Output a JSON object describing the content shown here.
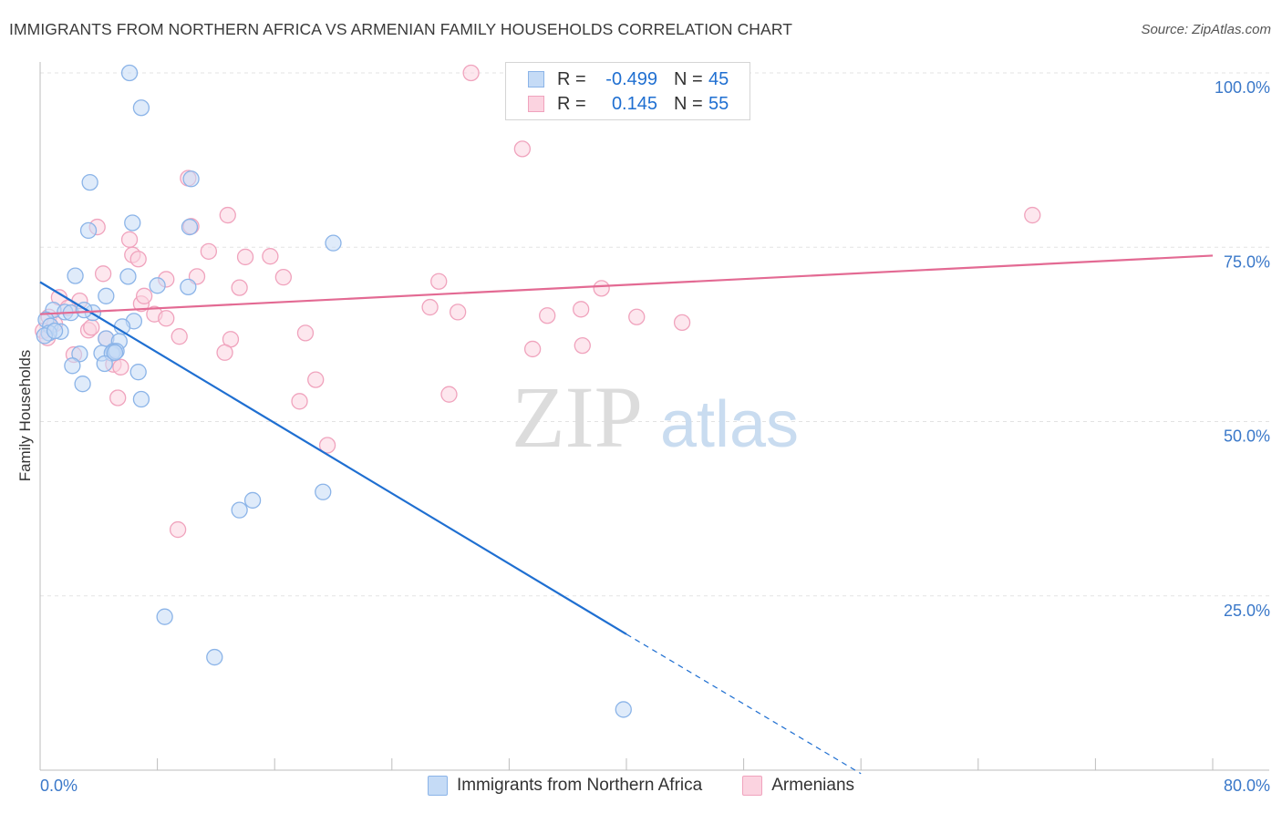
{
  "title": "IMMIGRANTS FROM NORTHERN AFRICA VS ARMENIAN FAMILY HOUSEHOLDS CORRELATION CHART",
  "source": "Source: ZipAtlas.com",
  "watermark": {
    "zip": "ZIP",
    "atlas": "atlas"
  },
  "legend": {
    "r_label": "R =",
    "n_label": "N =",
    "rows": [
      {
        "r": "-0.499",
        "n": "45",
        "color": "#8bb4e8",
        "fill": "#c5dbf6"
      },
      {
        "r": "0.145",
        "n": "55",
        "color": "#f0a3bd",
        "fill": "#fbd3e0"
      }
    ]
  },
  "chart_data": {
    "type": "scatter",
    "title": "IMMIGRANTS FROM NORTHERN AFRICA VS ARMENIAN FAMILY HOUSEHOLDS CORRELATION CHART",
    "xlabel": "",
    "ylabel": "Family Households",
    "xlim": [
      0,
      80
    ],
    "ylim": [
      0,
      100
    ],
    "x_tick_labels": [
      "0.0%",
      "80.0%"
    ],
    "y_ticks": [
      25,
      50,
      75,
      100
    ],
    "y_tick_labels": [
      "25.0%",
      "50.0%",
      "75.0%",
      "100.0%"
    ],
    "grid": "horizontal dashed",
    "colors": {
      "blue": "#1f6fd1",
      "pink": "#e36a93",
      "tick_label": "#3a78c9"
    },
    "series": [
      {
        "name": "Immigrants from Northern Africa",
        "color": "#8bb4e8",
        "fill": "#c5dbf6",
        "trend_color": "#1f6fd1",
        "trend": {
          "x0": 0,
          "y0": 70.0,
          "x1": 40.0,
          "y1": 19.5,
          "dash_to_x": 56.0,
          "dash_to_y": -0.5
        },
        "points": [
          [
            6.1,
            100.0
          ],
          [
            6.9,
            95.0
          ],
          [
            3.4,
            84.3
          ],
          [
            10.3,
            84.8
          ],
          [
            6.3,
            78.5
          ],
          [
            3.3,
            77.4
          ],
          [
            10.2,
            77.9
          ],
          [
            20.0,
            75.6
          ],
          [
            2.4,
            70.9
          ],
          [
            6.0,
            70.8
          ],
          [
            10.1,
            69.3
          ],
          [
            8.0,
            69.5
          ],
          [
            4.5,
            68.0
          ],
          [
            0.9,
            66.0
          ],
          [
            1.7,
            65.7
          ],
          [
            2.1,
            65.6
          ],
          [
            3.6,
            65.6
          ],
          [
            6.4,
            64.4
          ],
          [
            0.4,
            64.6
          ],
          [
            0.7,
            63.7
          ],
          [
            5.6,
            63.6
          ],
          [
            1.4,
            62.9
          ],
          [
            0.6,
            62.7
          ],
          [
            4.5,
            61.9
          ],
          [
            5.4,
            61.5
          ],
          [
            0.3,
            62.3
          ],
          [
            2.7,
            59.7
          ],
          [
            4.2,
            59.8
          ],
          [
            5.0,
            60.1
          ],
          [
            4.9,
            59.8
          ],
          [
            5.2,
            60.1
          ],
          [
            4.4,
            58.3
          ],
          [
            2.2,
            58.0
          ],
          [
            6.7,
            57.1
          ],
          [
            2.9,
            55.4
          ],
          [
            6.9,
            53.2
          ],
          [
            19.3,
            39.9
          ],
          [
            14.5,
            38.7
          ],
          [
            13.6,
            37.3
          ],
          [
            8.5,
            22.0
          ],
          [
            11.9,
            16.2
          ],
          [
            39.8,
            8.7
          ],
          [
            1.0,
            63.0
          ],
          [
            3.0,
            66.0
          ],
          [
            5.1,
            59.9
          ]
        ]
      },
      {
        "name": "Armenians",
        "color": "#f0a3bd",
        "fill": "#fbd3e0",
        "trend_color": "#e36a93",
        "trend": {
          "x0": 0,
          "y0": 65.4,
          "x1": 80,
          "y1": 73.8
        },
        "points": [
          [
            29.4,
            100.0
          ],
          [
            32.9,
            89.1
          ],
          [
            10.1,
            84.9
          ],
          [
            67.7,
            79.6
          ],
          [
            12.8,
            79.6
          ],
          [
            3.9,
            77.9
          ],
          [
            10.3,
            78.0
          ],
          [
            6.1,
            76.1
          ],
          [
            11.5,
            74.4
          ],
          [
            6.3,
            73.9
          ],
          [
            14.0,
            73.6
          ],
          [
            15.7,
            73.7
          ],
          [
            6.7,
            73.3
          ],
          [
            4.3,
            71.2
          ],
          [
            10.7,
            70.8
          ],
          [
            16.6,
            70.7
          ],
          [
            8.6,
            70.4
          ],
          [
            27.2,
            70.1
          ],
          [
            13.6,
            69.2
          ],
          [
            38.3,
            69.1
          ],
          [
            1.3,
            67.8
          ],
          [
            2.7,
            67.3
          ],
          [
            6.9,
            66.9
          ],
          [
            7.1,
            68.0
          ],
          [
            26.6,
            66.4
          ],
          [
            36.9,
            66.1
          ],
          [
            28.5,
            65.7
          ],
          [
            34.6,
            65.2
          ],
          [
            40.7,
            65.0
          ],
          [
            7.8,
            65.4
          ],
          [
            0.6,
            65.0
          ],
          [
            8.6,
            64.8
          ],
          [
            43.8,
            64.2
          ],
          [
            1.9,
            66.3
          ],
          [
            3.3,
            63.1
          ],
          [
            3.5,
            63.5
          ],
          [
            18.1,
            62.7
          ],
          [
            9.5,
            62.2
          ],
          [
            13.0,
            61.8
          ],
          [
            4.5,
            61.9
          ],
          [
            37.0,
            60.9
          ],
          [
            33.6,
            60.4
          ],
          [
            12.6,
            59.9
          ],
          [
            2.3,
            59.6
          ],
          [
            5.0,
            58.2
          ],
          [
            5.5,
            57.8
          ],
          [
            18.8,
            56.0
          ],
          [
            27.9,
            53.9
          ],
          [
            5.3,
            53.4
          ],
          [
            17.7,
            52.9
          ],
          [
            19.6,
            46.6
          ],
          [
            9.4,
            34.5
          ],
          [
            0.2,
            63.0
          ],
          [
            1.0,
            64.0
          ],
          [
            0.5,
            62.0
          ]
        ]
      }
    ]
  }
}
